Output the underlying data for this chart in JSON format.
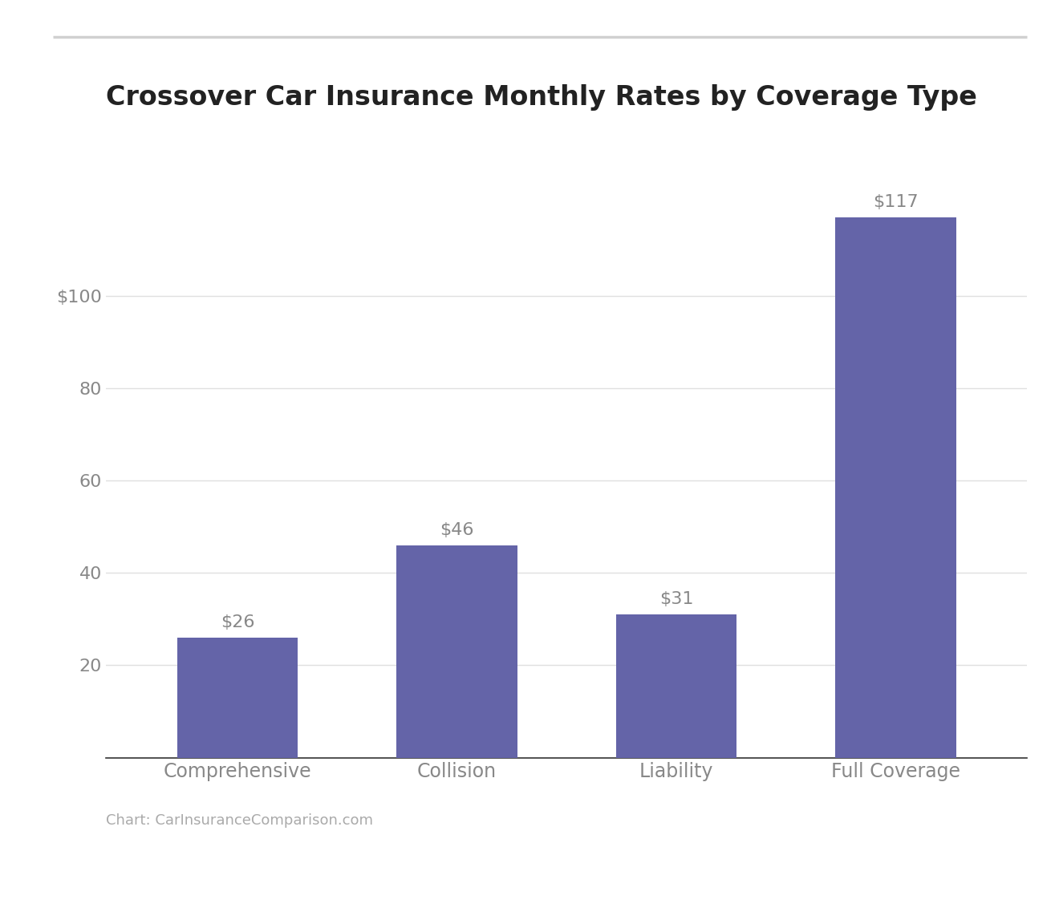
{
  "title": "Crossover Car Insurance Monthly Rates by Coverage Type",
  "categories": [
    "Comprehensive",
    "Collision",
    "Liability",
    "Full Coverage"
  ],
  "values": [
    26,
    46,
    31,
    117
  ],
  "bar_color": "#6464a8",
  "bar_labels": [
    "$26",
    "$46",
    "$31",
    "$117"
  ],
  "yticks": [
    20,
    40,
    60,
    80,
    100
  ],
  "ytick_labels": [
    "20",
    "40",
    "60",
    "80",
    "$100"
  ],
  "ylim": [
    0,
    128
  ],
  "background_color": "#ffffff",
  "grid_color": "#e0e0e0",
  "title_fontsize": 24,
  "tick_fontsize": 16,
  "label_fontsize": 17,
  "bar_label_fontsize": 16,
  "source_text": "Chart: CarInsuranceComparison.com",
  "source_fontsize": 13,
  "top_line_color": "#d0d0d0",
  "axis_label_color": "#888888",
  "title_color": "#222222",
  "bar_label_color": "#888888"
}
